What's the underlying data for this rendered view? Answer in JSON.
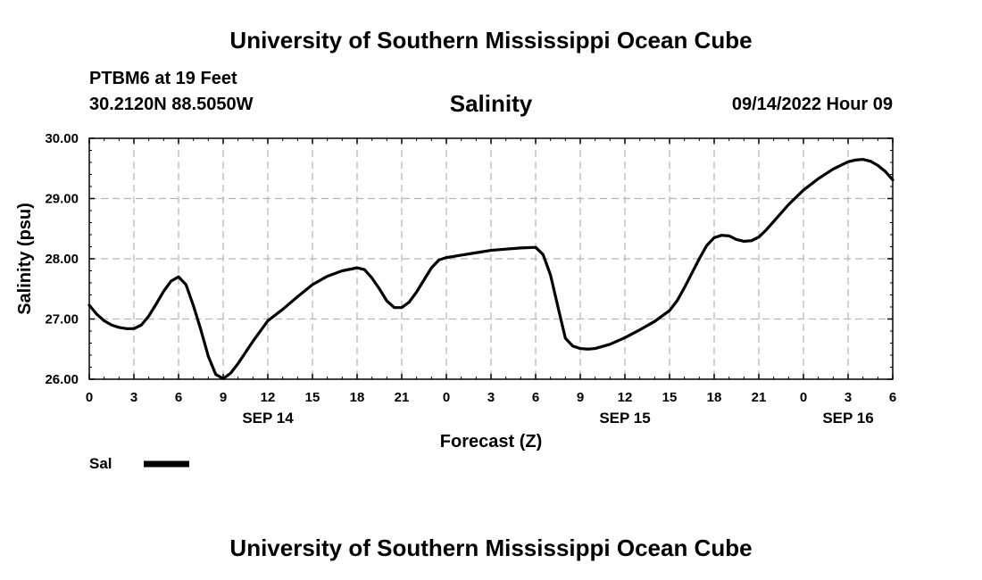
{
  "header": {
    "title": "University of Southern Mississippi Ocean Cube",
    "station": "PTBM6 at 19 Feet",
    "coordinates": "30.2120N  88.5050W",
    "timestamp": "09/14/2022 Hour 09"
  },
  "footer": {
    "title": "University of Southern Mississippi Ocean Cube"
  },
  "chart_data": {
    "type": "line",
    "title": "Salinity",
    "xlabel": "Forecast (Z)",
    "ylabel": "Salinity (psu)",
    "ylim": [
      26.0,
      30.0
    ],
    "xlim": [
      0,
      54
    ],
    "y_ticks": [
      "26.00",
      "27.00",
      "28.00",
      "29.00",
      "30.00"
    ],
    "x_ticks": [
      {
        "hour": 0,
        "label": "0"
      },
      {
        "hour": 3,
        "label": "3"
      },
      {
        "hour": 6,
        "label": "6"
      },
      {
        "hour": 9,
        "label": "9"
      },
      {
        "hour": 12,
        "label": "12"
      },
      {
        "hour": 15,
        "label": "15"
      },
      {
        "hour": 18,
        "label": "18"
      },
      {
        "hour": 21,
        "label": "21"
      },
      {
        "hour": 24,
        "label": "0"
      },
      {
        "hour": 27,
        "label": "3"
      },
      {
        "hour": 30,
        "label": "6"
      },
      {
        "hour": 33,
        "label": "9"
      },
      {
        "hour": 36,
        "label": "12"
      },
      {
        "hour": 39,
        "label": "15"
      },
      {
        "hour": 42,
        "label": "18"
      },
      {
        "hour": 45,
        "label": "21"
      },
      {
        "hour": 48,
        "label": "0"
      },
      {
        "hour": 51,
        "label": "3"
      },
      {
        "hour": 54,
        "label": "6"
      }
    ],
    "date_labels": [
      {
        "hour": 12,
        "label": "SEP 14"
      },
      {
        "hour": 36,
        "label": "SEP 15"
      },
      {
        "hour": 51,
        "label": "SEP 16"
      }
    ],
    "grid": true,
    "legend": [
      {
        "name": "Sal",
        "color": "#000000"
      }
    ],
    "series": [
      {
        "name": "Sal",
        "color": "#000000",
        "x": [
          0,
          0.5,
          1,
          1.5,
          2,
          2.5,
          3,
          3.5,
          4,
          4.5,
          5,
          5.5,
          6,
          6.5,
          7,
          7.5,
          8,
          8.5,
          9,
          9.5,
          10,
          11,
          12,
          13,
          14,
          15,
          16,
          17,
          18,
          18.5,
          19,
          19.5,
          20,
          20.5,
          21,
          21.5,
          22,
          22.5,
          23,
          23.5,
          24,
          25,
          26,
          27,
          28,
          29,
          30,
          30.5,
          31,
          31.5,
          32,
          32.5,
          33,
          33.5,
          34,
          35,
          36,
          37,
          38,
          39,
          39.5,
          40,
          40.5,
          41,
          41.5,
          42,
          42.5,
          43,
          43.5,
          44,
          44.5,
          45,
          45.5,
          46,
          47,
          48,
          49,
          50,
          51,
          51.5,
          52,
          52.5,
          53,
          53.5,
          54
        ],
        "values": [
          27.23,
          27.08,
          26.97,
          26.9,
          26.86,
          26.84,
          26.84,
          26.9,
          27.05,
          27.25,
          27.46,
          27.63,
          27.7,
          27.57,
          27.22,
          26.82,
          26.38,
          26.08,
          26.01,
          26.1,
          26.26,
          26.63,
          26.97,
          27.16,
          27.37,
          27.57,
          27.71,
          27.8,
          27.85,
          27.82,
          27.68,
          27.5,
          27.3,
          27.19,
          27.19,
          27.28,
          27.45,
          27.65,
          27.85,
          27.98,
          28.02,
          28.06,
          28.1,
          28.14,
          28.16,
          28.18,
          28.19,
          28.07,
          27.73,
          27.2,
          26.68,
          26.55,
          26.51,
          26.5,
          26.51,
          26.58,
          26.69,
          26.82,
          26.96,
          27.14,
          27.3,
          27.52,
          27.76,
          28.0,
          28.22,
          28.35,
          28.39,
          28.38,
          28.32,
          28.29,
          28.3,
          28.36,
          28.48,
          28.62,
          28.9,
          29.14,
          29.33,
          29.49,
          29.61,
          29.64,
          29.65,
          29.62,
          29.55,
          29.45,
          29.31
        ]
      }
    ]
  }
}
